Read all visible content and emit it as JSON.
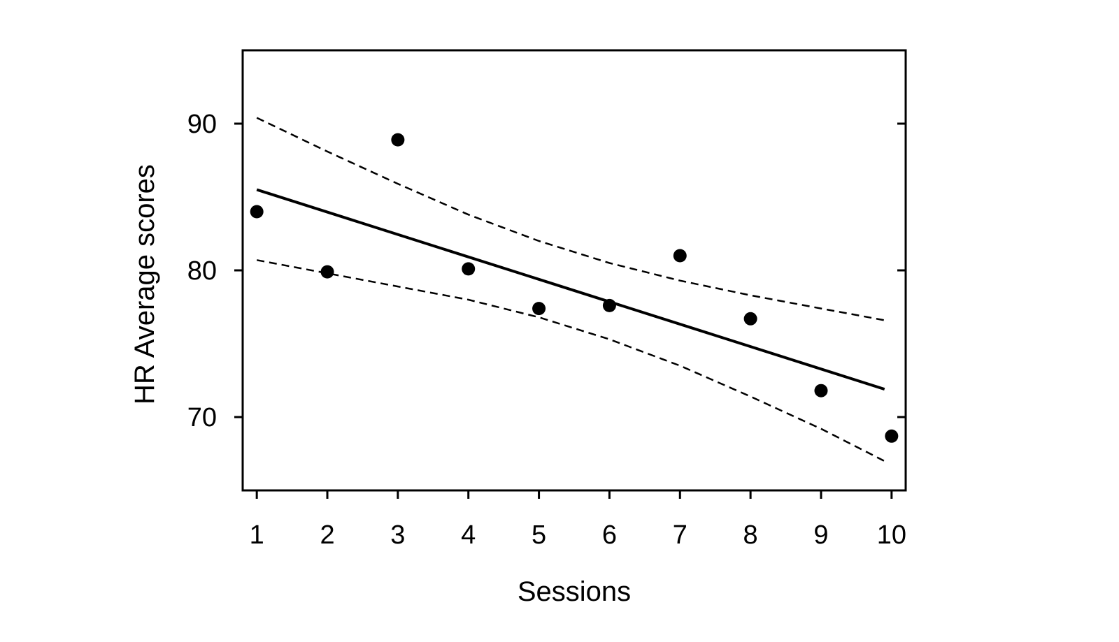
{
  "chart_data": {
    "type": "scatter",
    "title": "",
    "xlabel": "Sessions",
    "ylabel": "HR Average scores",
    "xlim": [
      0.8,
      10.2
    ],
    "ylim": [
      65,
      95
    ],
    "x_ticks": [
      1,
      2,
      3,
      4,
      5,
      6,
      7,
      8,
      9,
      10
    ],
    "y_ticks": [
      70,
      80,
      90
    ],
    "grid": false,
    "legend": "none",
    "points": [
      {
        "x": 1,
        "y": 84.0
      },
      {
        "x": 2,
        "y": 79.9
      },
      {
        "x": 3,
        "y": 88.9
      },
      {
        "x": 4,
        "y": 80.1
      },
      {
        "x": 5,
        "y": 77.4
      },
      {
        "x": 6,
        "y": 77.6
      },
      {
        "x": 7,
        "y": 81.0
      },
      {
        "x": 8,
        "y": 76.7
      },
      {
        "x": 9,
        "y": 71.8
      },
      {
        "x": 10,
        "y": 68.7
      }
    ],
    "fit_line": {
      "style": "solid",
      "x": [
        1,
        9.9
      ],
      "y": [
        85.5,
        71.9
      ]
    },
    "confidence_bands": [
      {
        "name": "upper",
        "style": "dashed",
        "x": [
          1,
          2,
          3,
          4,
          5,
          6,
          7,
          8,
          9,
          9.9
        ],
        "y": [
          90.4,
          88.1,
          85.9,
          83.8,
          82.0,
          80.5,
          79.3,
          78.3,
          77.4,
          76.6
        ]
      },
      {
        "name": "lower",
        "style": "dashed",
        "x": [
          1,
          2,
          3,
          4,
          5,
          6,
          7,
          8,
          9,
          9.9
        ],
        "y": [
          80.7,
          79.8,
          78.9,
          78.0,
          76.8,
          75.3,
          73.5,
          71.4,
          69.2,
          67.0
        ]
      }
    ],
    "colors": {
      "points": "#000000",
      "lines": "#000000",
      "axes": "#000000"
    }
  }
}
